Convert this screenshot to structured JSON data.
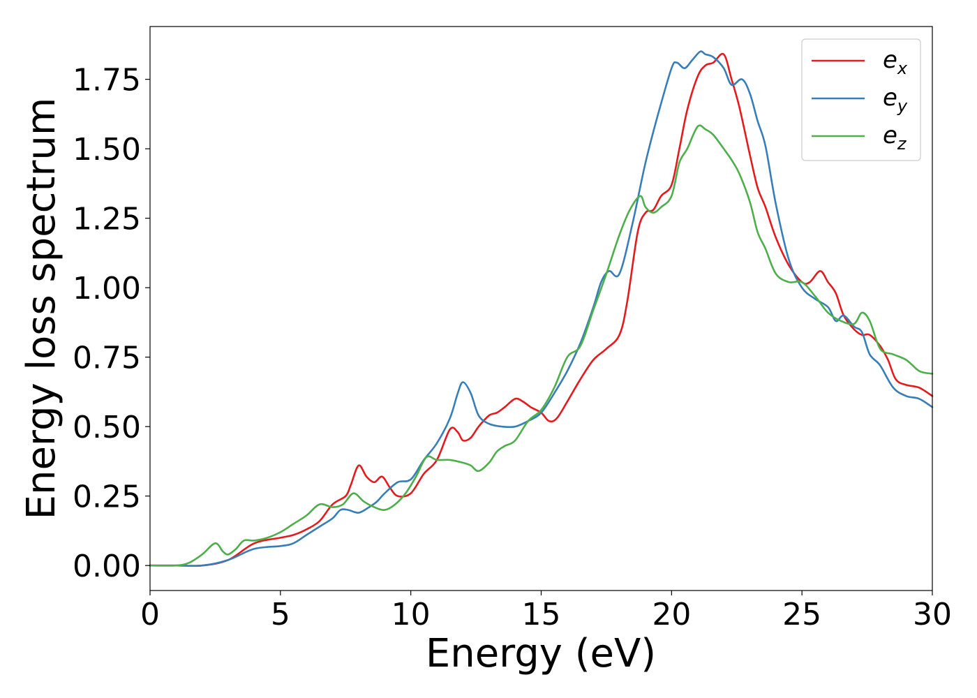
{
  "chart_data": {
    "type": "line",
    "title": "",
    "xlabel": "Energy (eV)",
    "ylabel": "Energy loss spectrum",
    "xlim": [
      0,
      30
    ],
    "ylim": [
      -0.09,
      1.94
    ],
    "xticks": [
      0,
      5,
      10,
      15,
      20,
      25,
      30
    ],
    "xtick_labels": [
      "0",
      "5",
      "10",
      "15",
      "20",
      "25",
      "30"
    ],
    "yticks": [
      0,
      0.25,
      0.5,
      0.75,
      1.0,
      1.25,
      1.5,
      1.75
    ],
    "ytick_labels": [
      "0.00",
      "0.25",
      "0.50",
      "0.75",
      "1.00",
      "1.25",
      "1.50",
      "1.75"
    ],
    "grid": false,
    "legend_position": "top-right",
    "series": [
      {
        "name": "e",
        "subscript": "x",
        "color": "#e41a1c",
        "x": [
          0,
          1,
          2,
          3,
          4,
          5,
          5.5,
          6,
          6.5,
          7,
          7.5,
          7.7,
          8,
          8.3,
          8.6,
          8.9,
          9.2,
          9.5,
          10,
          10.5,
          11,
          11.5,
          11.8,
          12,
          12.3,
          12.6,
          13,
          13.3,
          13.6,
          14,
          14.3,
          14.6,
          15,
          15.3,
          15.6,
          16,
          16.5,
          17,
          17.5,
          18,
          18.3,
          18.7,
          19,
          19.3,
          19.6,
          20,
          20.3,
          20.6,
          21,
          21.3,
          21.6,
          22,
          22.3,
          22.6,
          23,
          23.3,
          23.6,
          24,
          24.5,
          25,
          25.3,
          25.7,
          26,
          26.3,
          26.6,
          27,
          27.3,
          27.6,
          28,
          28.3,
          28.6,
          29,
          29.5,
          30
        ],
        "y": [
          0,
          0,
          0,
          0.02,
          0.08,
          0.1,
          0.11,
          0.13,
          0.16,
          0.22,
          0.25,
          0.29,
          0.36,
          0.32,
          0.3,
          0.32,
          0.28,
          0.25,
          0.26,
          0.33,
          0.38,
          0.49,
          0.48,
          0.45,
          0.46,
          0.5,
          0.54,
          0.55,
          0.57,
          0.6,
          0.59,
          0.57,
          0.55,
          0.52,
          0.53,
          0.59,
          0.67,
          0.74,
          0.78,
          0.83,
          0.95,
          1.2,
          1.27,
          1.28,
          1.33,
          1.37,
          1.5,
          1.64,
          1.76,
          1.8,
          1.81,
          1.84,
          1.75,
          1.65,
          1.48,
          1.36,
          1.29,
          1.18,
          1.08,
          1.02,
          1.02,
          1.06,
          1.02,
          0.98,
          0.9,
          0.85,
          0.83,
          0.83,
          0.79,
          0.74,
          0.67,
          0.65,
          0.64,
          0.61
        ]
      },
      {
        "name": "e",
        "subscript": "y",
        "color": "#377eb8",
        "x": [
          0,
          1,
          2,
          3,
          4,
          5,
          5.5,
          6,
          6.5,
          7,
          7.3,
          7.6,
          8,
          8.4,
          8.7,
          9,
          9.5,
          10,
          10.5,
          11,
          11.5,
          11.8,
          12,
          12.3,
          12.6,
          13,
          13.5,
          14,
          14.5,
          15,
          15.5,
          16,
          16.5,
          17,
          17.3,
          17.6,
          18,
          18.5,
          19,
          19.5,
          20,
          20.2,
          20.5,
          20.8,
          21.1,
          21.3,
          21.6,
          22,
          22.3,
          22.7,
          23,
          23.3,
          23.6,
          24,
          24.5,
          25,
          25.5,
          26,
          26.3,
          26.6,
          27,
          27.3,
          27.6,
          28,
          28.5,
          29,
          29.5,
          30
        ],
        "y": [
          0,
          0,
          0,
          0.02,
          0.06,
          0.07,
          0.08,
          0.11,
          0.14,
          0.17,
          0.2,
          0.2,
          0.19,
          0.21,
          0.23,
          0.26,
          0.3,
          0.31,
          0.38,
          0.44,
          0.53,
          0.62,
          0.66,
          0.62,
          0.54,
          0.51,
          0.5,
          0.5,
          0.52,
          0.55,
          0.62,
          0.7,
          0.8,
          0.93,
          1.02,
          1.06,
          1.05,
          1.23,
          1.45,
          1.63,
          1.79,
          1.81,
          1.79,
          1.82,
          1.85,
          1.84,
          1.83,
          1.79,
          1.73,
          1.75,
          1.7,
          1.6,
          1.51,
          1.3,
          1.1,
          1.0,
          0.96,
          0.93,
          0.88,
          0.9,
          0.86,
          0.84,
          0.76,
          0.72,
          0.64,
          0.61,
          0.6,
          0.57
        ]
      },
      {
        "name": "e",
        "subscript": "z",
        "color": "#4daf4a",
        "x": [
          0,
          1,
          1.5,
          2,
          2.5,
          2.8,
          3,
          3.3,
          3.6,
          4,
          4.5,
          5,
          5.5,
          6,
          6.5,
          7,
          7.4,
          7.8,
          8.2,
          8.6,
          9,
          9.4,
          9.8,
          10.2,
          10.6,
          11,
          11.5,
          12,
          12.3,
          12.6,
          13,
          13.3,
          13.6,
          14,
          14.5,
          15,
          15.5,
          16,
          16.5,
          17,
          17.5,
          18,
          18.4,
          18.8,
          19,
          19.3,
          19.6,
          20,
          20.3,
          20.6,
          21,
          21.3,
          21.6,
          22,
          22.3,
          22.6,
          23,
          23.3,
          23.6,
          24,
          24.5,
          25,
          25.5,
          26,
          26.5,
          27,
          27.3,
          27.6,
          28,
          28.5,
          29,
          29.5,
          30
        ],
        "y": [
          0,
          0,
          0.01,
          0.04,
          0.08,
          0.05,
          0.04,
          0.06,
          0.09,
          0.09,
          0.1,
          0.12,
          0.15,
          0.18,
          0.22,
          0.21,
          0.22,
          0.26,
          0.23,
          0.21,
          0.2,
          0.22,
          0.26,
          0.32,
          0.39,
          0.38,
          0.38,
          0.37,
          0.36,
          0.34,
          0.37,
          0.41,
          0.43,
          0.45,
          0.52,
          0.56,
          0.64,
          0.75,
          0.79,
          0.92,
          1.05,
          1.19,
          1.28,
          1.33,
          1.29,
          1.27,
          1.29,
          1.33,
          1.45,
          1.5,
          1.58,
          1.57,
          1.55,
          1.5,
          1.46,
          1.41,
          1.31,
          1.2,
          1.14,
          1.05,
          1.02,
          1.02,
          0.97,
          0.91,
          0.88,
          0.87,
          0.91,
          0.88,
          0.78,
          0.76,
          0.74,
          0.7,
          0.69
        ]
      }
    ]
  }
}
